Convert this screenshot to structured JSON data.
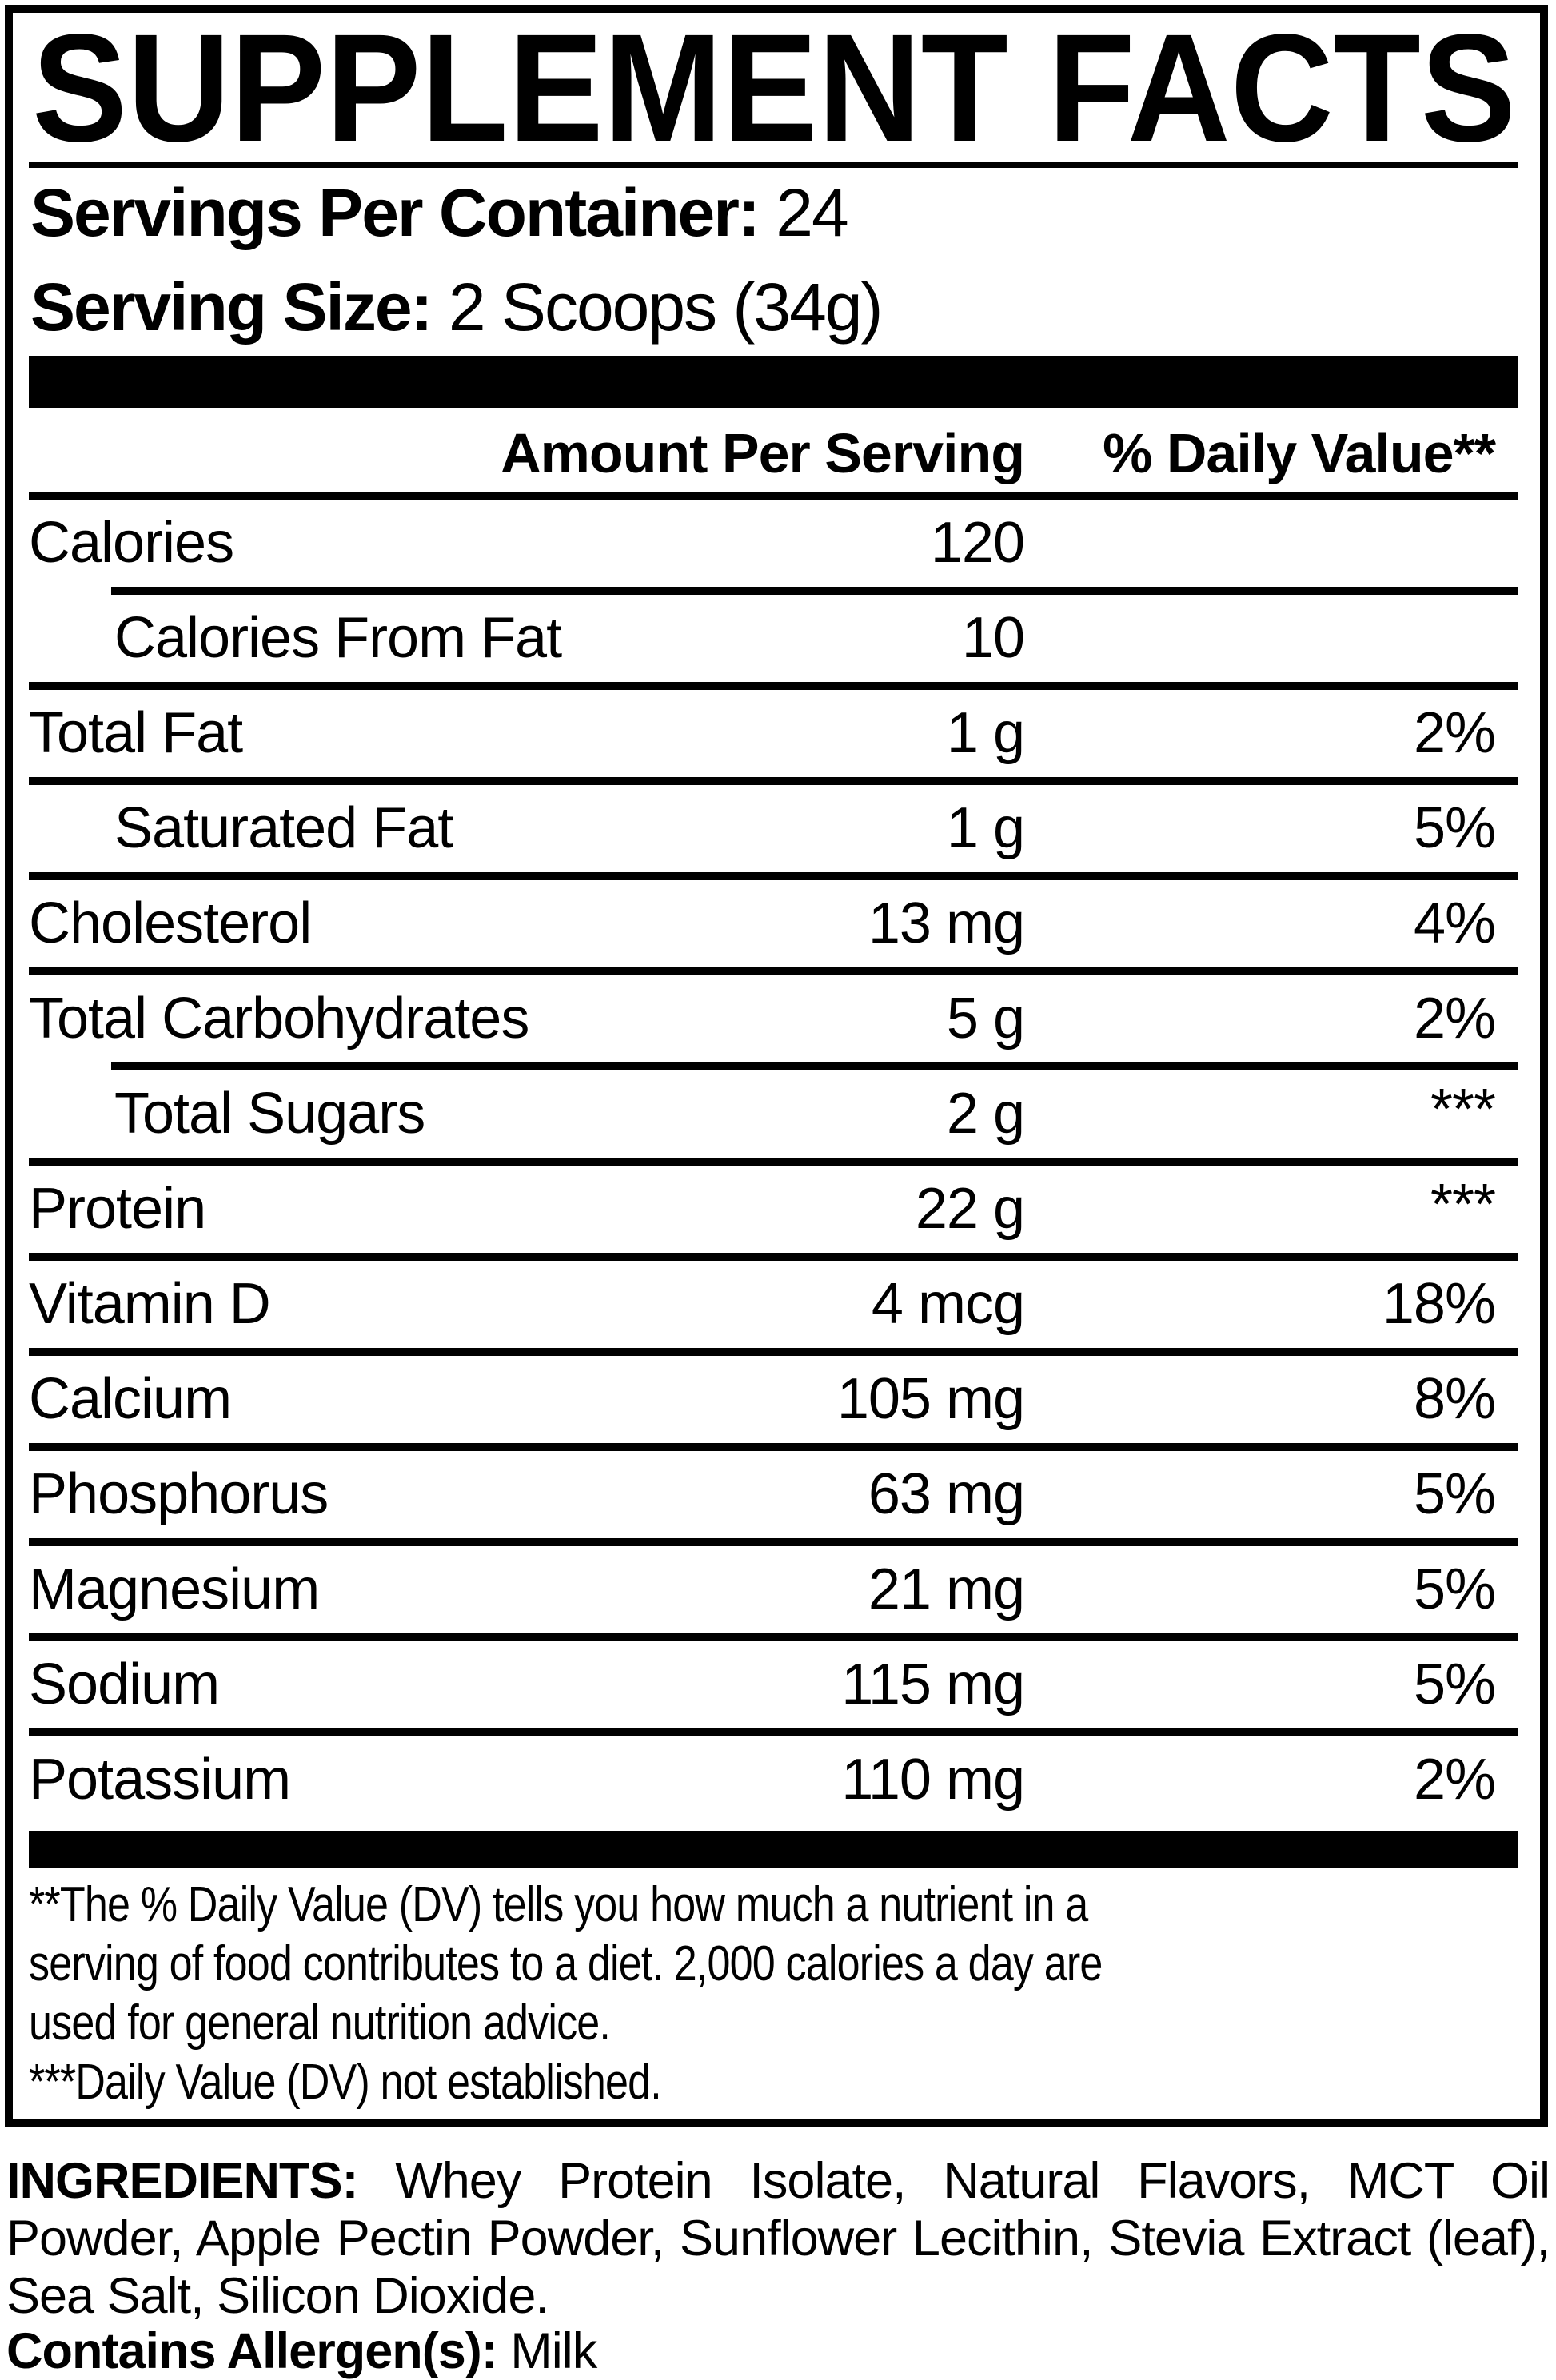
{
  "title": "SUPPLEMENT FACTS",
  "servings": {
    "label": "Servings Per Container:",
    "value": "24"
  },
  "serving_size": {
    "label": "Serving Size:",
    "value": "2 Scoops (34g)"
  },
  "table": {
    "amount_header": "Amount Per Serving",
    "dv_header": "% Daily Value**",
    "rows": [
      {
        "label": "Calories",
        "amount": "120",
        "dv": "",
        "indent": false,
        "sep_top": "full",
        "dv_star": false
      },
      {
        "label": "Calories From Fat",
        "amount": "10",
        "dv": "",
        "indent": true,
        "sep_top": "indent",
        "dv_star": false
      },
      {
        "label": "Total Fat",
        "amount": "1 g",
        "dv": "2%",
        "indent": false,
        "sep_top": "full",
        "dv_star": false
      },
      {
        "label": "Saturated Fat",
        "amount": "1 g",
        "dv": "5%",
        "indent": true,
        "sep_top": "full",
        "dv_star": false
      },
      {
        "label": "Cholesterol",
        "amount": "13 mg",
        "dv": "4%",
        "indent": false,
        "sep_top": "full",
        "dv_star": false
      },
      {
        "label": "Total Carbohydrates",
        "amount": "5 g",
        "dv": "2%",
        "indent": false,
        "sep_top": "full",
        "dv_star": false
      },
      {
        "label": "Total Sugars",
        "amount": "2 g",
        "dv": "***",
        "indent": true,
        "sep_top": "indent",
        "dv_star": true
      },
      {
        "label": "Protein",
        "amount": "22 g",
        "dv": "***",
        "indent": false,
        "sep_top": "full",
        "dv_star": true
      },
      {
        "label": "Vitamin D",
        "amount": "4 mcg",
        "dv": "18%",
        "indent": false,
        "sep_top": "full",
        "dv_star": false
      },
      {
        "label": "Calcium",
        "amount": "105 mg",
        "dv": "8%",
        "indent": false,
        "sep_top": "full",
        "dv_star": false
      },
      {
        "label": "Phosphorus",
        "amount": "63 mg",
        "dv": "5%",
        "indent": false,
        "sep_top": "full",
        "dv_star": false
      },
      {
        "label": "Magnesium",
        "amount": "21 mg",
        "dv": "5%",
        "indent": false,
        "sep_top": "full",
        "dv_star": false
      },
      {
        "label": "Sodium",
        "amount": "115 mg",
        "dv": "5%",
        "indent": false,
        "sep_top": "full",
        "dv_star": false
      },
      {
        "label": "Potassium",
        "amount": "110 mg",
        "dv": "2%",
        "indent": false,
        "sep_top": "full",
        "dv_star": false
      }
    ]
  },
  "footnotes": {
    "line1": "**The % Daily Value (DV) tells you how much a nutrient in a",
    "line2": "serving of food contributes to a diet. 2,000 calories a day are",
    "line3": "used for general nutrition advice.",
    "line4": "***Daily Value (DV) not established."
  },
  "ingredients": {
    "label": "INGREDIENTS:",
    "text": "Whey Protein Isolate, Natural Flavors, MCT Oil Powder, Apple Pectin Powder, Sunflower Lecithin, Stevia Extract (leaf), Sea Salt, Silicon Dioxide."
  },
  "allergen": {
    "label": "Contains Allergen(s):",
    "value": "Milk"
  },
  "colors": {
    "ink": "#000000",
    "paper": "#ffffff"
  }
}
